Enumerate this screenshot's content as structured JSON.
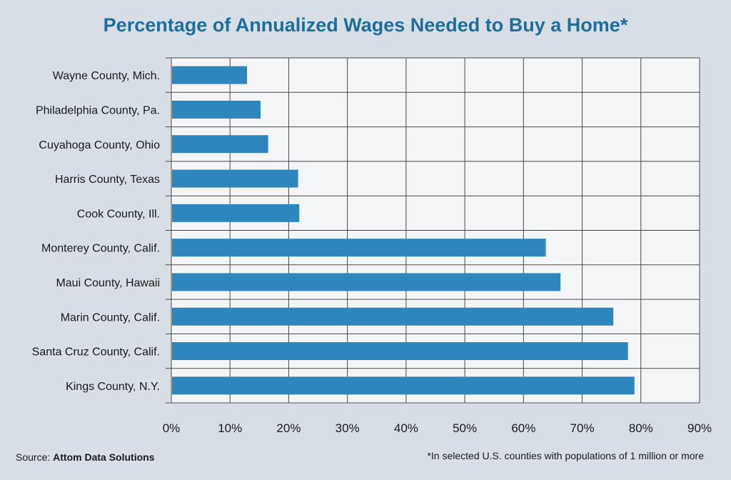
{
  "chart_data": {
    "type": "bar",
    "orientation": "horizontal",
    "title": "Percentage of Annualized Wages Needed to Buy a Home*",
    "categories": [
      "Wayne County, Mich.",
      "Philadelphia County, Pa.",
      "Cuyahoga County, Ohio",
      "Harris County, Texas",
      "Cook County, Ill.",
      "Monterey County, Calif.",
      "Maui County, Hawaii",
      "Marin County, Calif.",
      "Santa Cruz County, Calif.",
      "Kings County, N.Y."
    ],
    "values": [
      12.9,
      15.2,
      16.5,
      21.6,
      21.8,
      63.8,
      66.3,
      75.3,
      77.8,
      78.9
    ],
    "xlim": [
      0,
      90
    ],
    "xticks": [
      "0%",
      "10%",
      "20%",
      "30%",
      "40%",
      "50%",
      "60%",
      "70%",
      "80%",
      "90%"
    ],
    "xlabel": "",
    "ylabel": "",
    "grid": true,
    "bar_color": "#2e86bd"
  },
  "footer": {
    "source_label": "Source:",
    "source_name": "Attom Data Solutions",
    "note": "*In selected U.S. counties with populations of 1 million or more"
  },
  "colors": {
    "title": "#1e6e9c",
    "background": "#d8dee6",
    "plot_background": "#f4f5f7",
    "grid": "#4a4a4a"
  }
}
